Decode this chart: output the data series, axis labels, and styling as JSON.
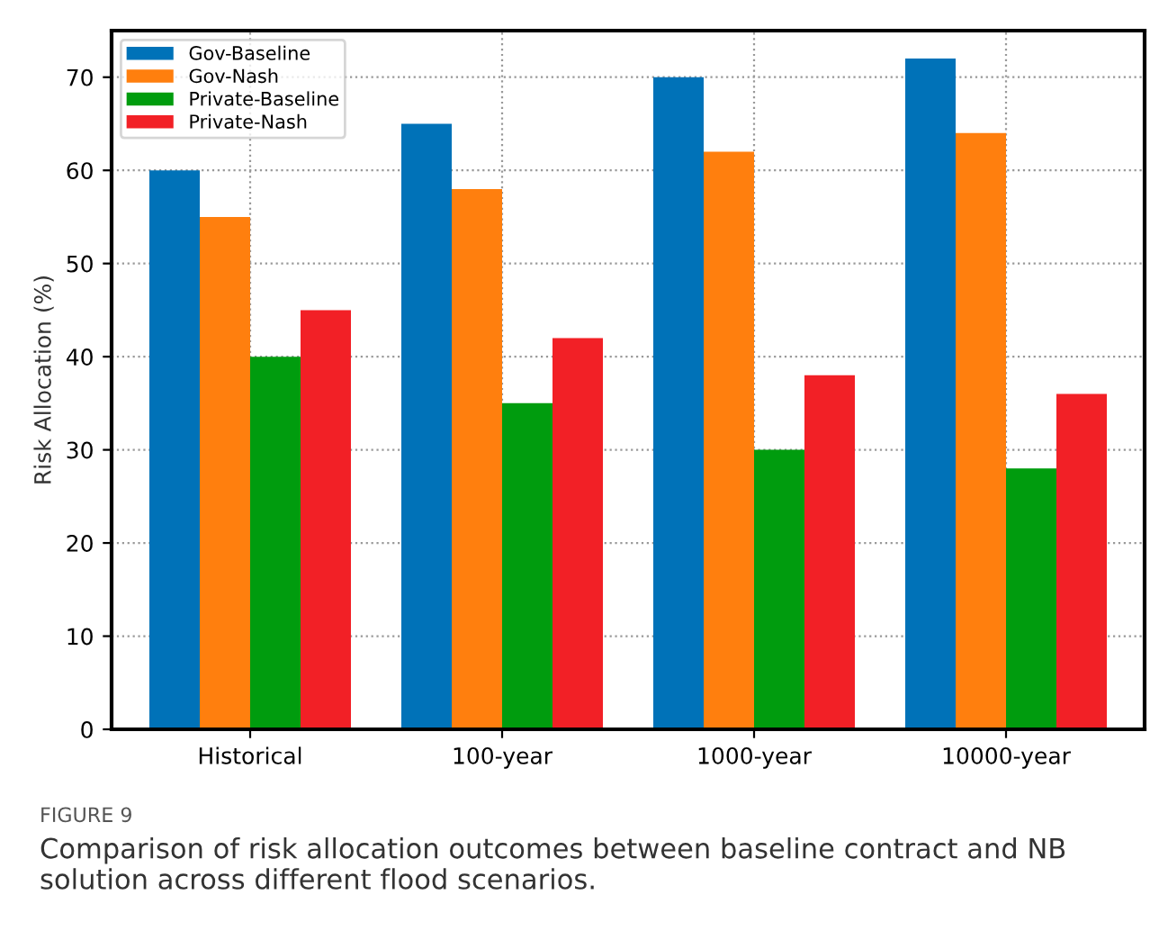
{
  "chart_data": {
    "type": "bar",
    "categories": [
      "Historical",
      "100-year",
      "1000-year",
      "10000-year"
    ],
    "ylabel": "Risk Allocation (%)",
    "series": [
      {
        "name": "Gov-Baseline",
        "color": "#0072b8",
        "values": [
          60,
          65,
          70,
          72
        ]
      },
      {
        "name": "Gov-Nash",
        "color": "#ff7f0e",
        "values": [
          55,
          58,
          62,
          64
        ]
      },
      {
        "name": "Private-Baseline",
        "color": "#009c0e",
        "values": [
          40,
          35,
          30,
          28
        ]
      },
      {
        "name": "Private-Nash",
        "color": "#f22026",
        "values": [
          45,
          42,
          38,
          36
        ]
      }
    ],
    "ylim": [
      0,
      75
    ],
    "yticks": [
      0,
      10,
      20,
      30,
      40,
      50,
      60,
      70
    ],
    "grid": true,
    "legend": "top left",
    "annotations": [
      "FIGURE 9",
      "Comparison of risk allocation outcomes between baseline contract and NB solution across different flood scenarios."
    ]
  }
}
